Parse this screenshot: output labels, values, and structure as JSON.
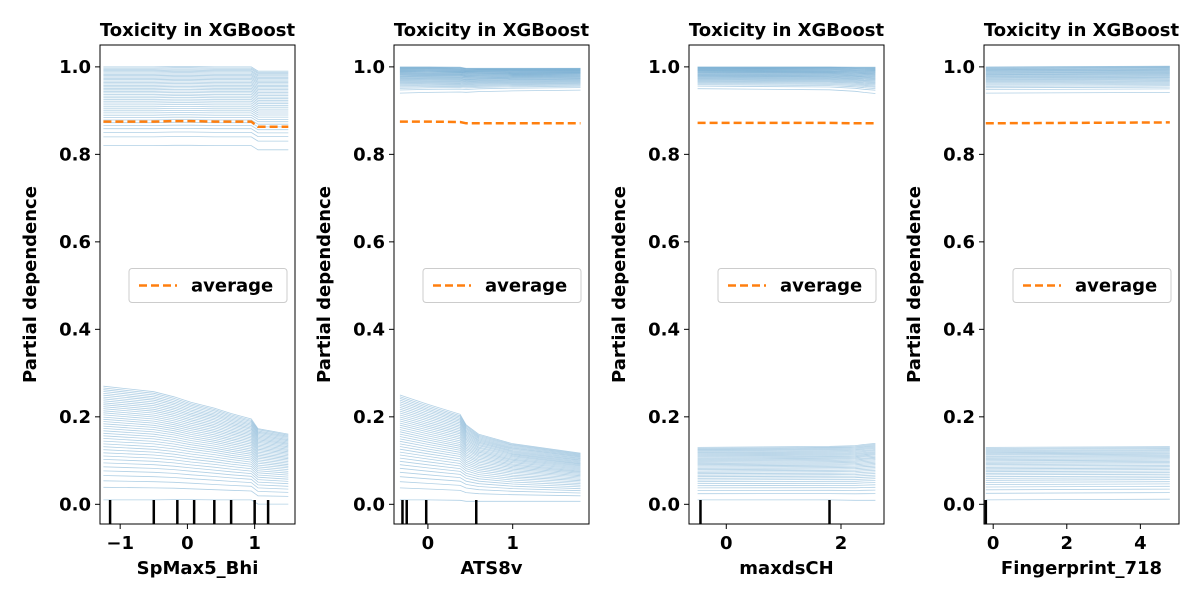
{
  "colors": {
    "ice": "#1f77b4",
    "average": "#ff7f0e",
    "rug": "#000000"
  },
  "chart_data": [
    {
      "type": "line",
      "title": "Toxicity in XGBoost",
      "xlabel": "SpMax5_Bhi",
      "ylabel": "Partial dependence",
      "xlim": [
        -1.3,
        1.6
      ],
      "ylim": [
        -0.045,
        1.05
      ],
      "xticks": [
        -1,
        0,
        1
      ],
      "xtick_labels": [
        "−1",
        "0",
        "1"
      ],
      "yticks": [
        0.0,
        0.2,
        0.4,
        0.6,
        0.8,
        1.0
      ],
      "ytick_labels": [
        "0.0",
        "0.2",
        "0.4",
        "0.6",
        "0.8",
        "1.0"
      ],
      "grid": false,
      "legend": {
        "entries": [
          "average"
        ],
        "placement": "center-right"
      },
      "grid_x": [
        -1.25,
        -0.5,
        -0.2,
        0.05,
        0.4,
        0.65,
        0.95,
        1.05,
        1.5
      ],
      "average": [
        0.875,
        0.875,
        0.876,
        0.876,
        0.875,
        0.875,
        0.875,
        0.863,
        0.863
      ],
      "rug": [
        -1.15,
        -0.5,
        -0.15,
        0.1,
        0.4,
        0.65,
        1.0,
        1.2
      ],
      "ice_high": {
        "start": [
          0.82,
          1.0
        ],
        "end": [
          0.82,
          1.0
        ],
        "count": 40
      },
      "ice_low": {
        "start": [
          0.01,
          0.27
        ],
        "end": [
          0.01,
          0.17
        ],
        "count": 40
      }
    },
    {
      "type": "line",
      "title": "Toxicity in XGBoost",
      "xlabel": "ATS8v",
      "ylabel": "Partial dependence",
      "xlim": [
        -0.4,
        1.9
      ],
      "ylim": [
        -0.045,
        1.05
      ],
      "xticks": [
        0,
        1
      ],
      "xtick_labels": [
        "0",
        "1"
      ],
      "yticks": [
        0.0,
        0.2,
        0.4,
        0.6,
        0.8,
        1.0
      ],
      "ytick_labels": [
        "0.0",
        "0.2",
        "0.4",
        "0.6",
        "0.8",
        "1.0"
      ],
      "grid": false,
      "legend": {
        "entries": [
          "average"
        ],
        "placement": "center-right"
      },
      "grid_x": [
        -0.33,
        0.0,
        0.38,
        0.45,
        0.6,
        1.0,
        1.8
      ],
      "average": [
        0.875,
        0.875,
        0.874,
        0.871,
        0.871,
        0.871,
        0.871
      ],
      "rug": [
        -0.3,
        -0.25,
        -0.02,
        0.57
      ],
      "ice_high": {
        "start": [
          0.94,
          1.0
        ],
        "end": [
          0.95,
          1.0
        ],
        "count": 36
      },
      "ice_low": {
        "start": [
          0.01,
          0.25
        ],
        "end": [
          0.01,
          0.12
        ],
        "count": 38
      }
    },
    {
      "type": "line",
      "title": "Toxicity in XGBoost",
      "xlabel": "maxdsCH",
      "ylabel": "Partial dependence",
      "xlim": [
        -0.65,
        2.75
      ],
      "ylim": [
        -0.045,
        1.05
      ],
      "xticks": [
        0,
        2
      ],
      "xtick_labels": [
        "0",
        "2"
      ],
      "yticks": [
        0.0,
        0.2,
        0.4,
        0.6,
        0.8,
        1.0
      ],
      "ytick_labels": [
        "0.0",
        "0.2",
        "0.4",
        "0.6",
        "0.8",
        "1.0"
      ],
      "grid": false,
      "legend": {
        "entries": [
          "average"
        ],
        "placement": "center-right"
      },
      "grid_x": [
        -0.5,
        1.8,
        2.25,
        2.4,
        2.6
      ],
      "average": [
        0.872,
        0.872,
        0.871,
        0.871,
        0.871
      ],
      "rug": [
        -0.45,
        1.8
      ],
      "ice_high": {
        "start": [
          0.95,
          1.0
        ],
        "end": [
          0.94,
          1.0
        ],
        "count": 34
      },
      "ice_low": {
        "start": [
          0.01,
          0.13
        ],
        "end": [
          0.01,
          0.14
        ],
        "count": 36
      }
    },
    {
      "type": "line",
      "title": "Toxicity in XGBoost",
      "xlabel": "Fingerprint_718",
      "ylabel": "Partial dependence",
      "xlim": [
        -0.25,
        5.05
      ],
      "ylim": [
        -0.045,
        1.05
      ],
      "xticks": [
        0,
        2,
        4
      ],
      "xtick_labels": [
        "0",
        "2",
        "4"
      ],
      "yticks": [
        0.0,
        0.2,
        0.4,
        0.6,
        0.8,
        1.0
      ],
      "ytick_labels": [
        "0.0",
        "0.2",
        "0.4",
        "0.6",
        "0.8",
        "1.0"
      ],
      "grid": false,
      "legend": {
        "entries": [
          "average"
        ],
        "placement": "center-right"
      },
      "grid_x": [
        -0.2,
        4.8
      ],
      "average": [
        0.871,
        0.873
      ],
      "rug": [
        -0.2
      ],
      "ice_high": {
        "start": [
          0.94,
          1.0
        ],
        "end": [
          0.94,
          1.0
        ],
        "count": 30
      },
      "ice_low": {
        "start": [
          0.01,
          0.13
        ],
        "end": [
          0.01,
          0.13
        ],
        "count": 32
      }
    }
  ]
}
